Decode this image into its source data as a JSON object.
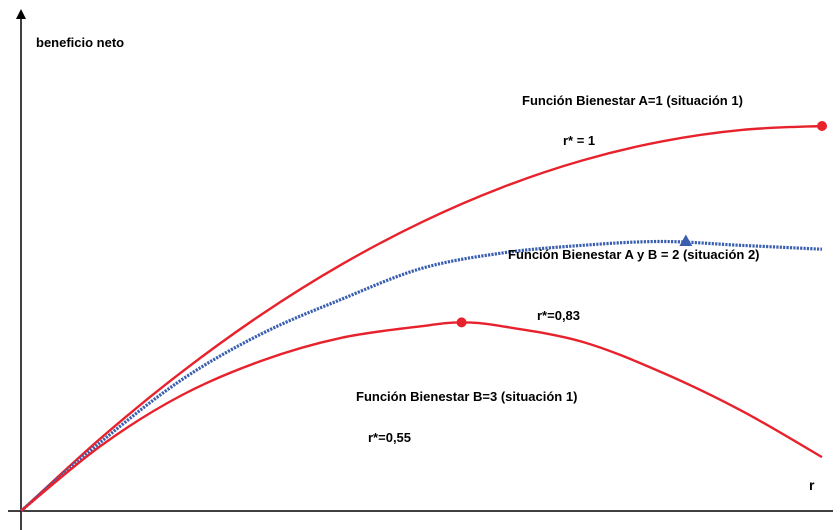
{
  "chart_data": {
    "type": "line",
    "title": "",
    "xlabel": "r",
    "ylabel": "beneficio neto",
    "grid": false,
    "legend": "none",
    "x_tick_labels": [],
    "y_tick_labels": [],
    "series": [
      {
        "name": "Función Bienestar A=1 (situación 1)",
        "optimum_label": "r* = 1",
        "color": "#e8222c",
        "line_style": "solid",
        "marker": "circle",
        "x": [
          0,
          0.1,
          0.2,
          0.3,
          0.4,
          0.5,
          0.6,
          0.7,
          0.8,
          0.9,
          1.0
        ],
        "y": [
          0,
          0.19,
          0.36,
          0.51,
          0.64,
          0.75,
          0.84,
          0.91,
          0.96,
          0.99,
          1.0
        ],
        "optimum": {
          "x": 1.0,
          "y": 1.0
        }
      },
      {
        "name": "Función Bienestar A y B = 2  (situación 2)",
        "optimum_label": "r*=0,83",
        "color": "#3a5fb0",
        "line_style": "dotted",
        "marker": "triangle",
        "x": [
          0,
          0.1,
          0.2,
          0.3,
          0.4,
          0.5,
          0.6,
          0.7,
          0.8,
          0.9,
          1.0
        ],
        "y": [
          0,
          0.18,
          0.34,
          0.46,
          0.55,
          0.63,
          0.67,
          0.69,
          0.7,
          0.69,
          0.68
        ],
        "optimum": {
          "x": 0.83,
          "y": 0.7
        }
      },
      {
        "name": "Función Bienestar B=3  (situación 1)",
        "optimum_label": "r*=0,55",
        "color": "#e8222c",
        "line_style": "solid",
        "marker": "circle",
        "x": [
          0,
          0.1,
          0.2,
          0.3,
          0.4,
          0.5,
          0.55,
          0.6,
          0.7,
          0.8,
          0.9,
          1.0
        ],
        "y": [
          0,
          0.17,
          0.3,
          0.39,
          0.45,
          0.48,
          0.49,
          0.48,
          0.44,
          0.36,
          0.26,
          0.14
        ],
        "optimum": {
          "x": 0.55,
          "y": 0.49
        }
      }
    ]
  }
}
